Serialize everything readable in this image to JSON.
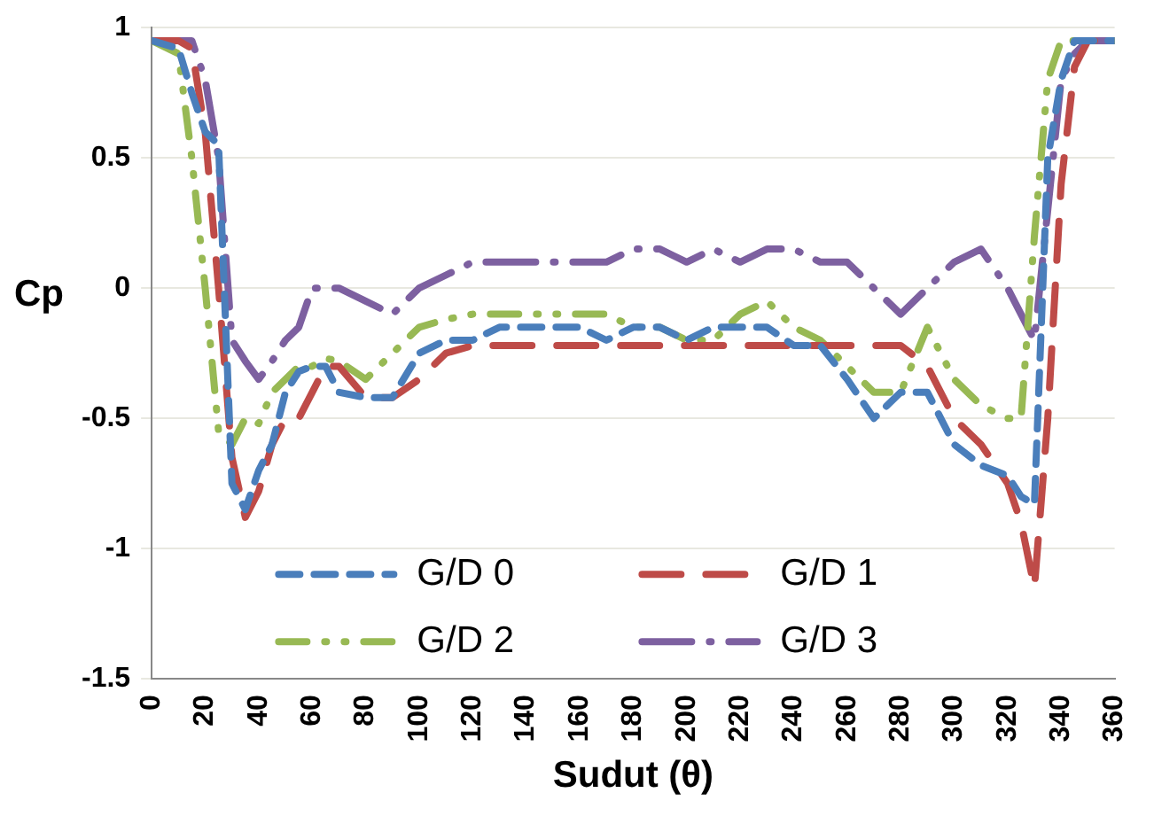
{
  "chart_data": {
    "type": "line",
    "xlabel": "Sudut (θ)",
    "ylabel": "Cp",
    "xlim": [
      0,
      360
    ],
    "xticks": [
      0,
      20,
      40,
      60,
      80,
      100,
      120,
      140,
      160,
      180,
      200,
      220,
      240,
      260,
      280,
      300,
      320,
      340,
      360
    ],
    "ylim": [
      -1.5,
      1
    ],
    "yticks": [
      -1.5,
      -1,
      -0.5,
      0,
      0.5,
      1
    ],
    "grid": "y",
    "legend": "bottom",
    "marker": "none",
    "line_style": "dashed",
    "x": [
      0,
      10,
      15,
      20,
      25,
      30,
      35,
      40,
      45,
      50,
      55,
      60,
      65,
      70,
      80,
      90,
      100,
      110,
      120,
      130,
      140,
      150,
      160,
      170,
      180,
      190,
      200,
      210,
      220,
      230,
      240,
      250,
      260,
      270,
      280,
      290,
      300,
      310,
      320,
      325,
      330,
      335,
      340,
      345,
      350,
      360
    ],
    "series": [
      {
        "name": "G/D 0",
        "color": "#4a7ebb",
        "values": [
          0.95,
          0.92,
          0.75,
          0.6,
          0.55,
          -0.75,
          -0.85,
          -0.7,
          -0.6,
          -0.4,
          -0.32,
          -0.3,
          -0.3,
          -0.4,
          -0.42,
          -0.42,
          -0.25,
          -0.2,
          -0.2,
          -0.15,
          -0.15,
          -0.15,
          -0.15,
          -0.2,
          -0.15,
          -0.15,
          -0.2,
          -0.15,
          -0.15,
          -0.15,
          -0.22,
          -0.22,
          -0.35,
          -0.5,
          -0.4,
          -0.4,
          -0.6,
          -0.68,
          -0.72,
          -0.8,
          -0.83,
          0.5,
          0.8,
          0.95,
          0.95,
          0.95
        ]
      },
      {
        "name": "G/D 1",
        "color": "#be4b48",
        "values": [
          0.95,
          0.95,
          0.92,
          0.6,
          0.0,
          -0.65,
          -0.88,
          -0.78,
          -0.6,
          -0.5,
          -0.5,
          -0.4,
          -0.3,
          -0.3,
          -0.42,
          -0.42,
          -0.35,
          -0.25,
          -0.22,
          -0.22,
          -0.22,
          -0.22,
          -0.22,
          -0.22,
          -0.22,
          -0.22,
          -0.22,
          -0.22,
          -0.22,
          -0.22,
          -0.22,
          -0.22,
          -0.22,
          -0.22,
          -0.22,
          -0.3,
          -0.5,
          -0.6,
          -0.75,
          -0.9,
          -1.15,
          -0.5,
          0.4,
          0.85,
          0.95,
          0.95
        ]
      },
      {
        "name": "G/D 2",
        "color": "#98b954",
        "values": [
          0.95,
          0.9,
          0.5,
          0.0,
          -0.55,
          -0.6,
          -0.5,
          -0.52,
          -0.4,
          -0.35,
          -0.3,
          -0.3,
          -0.27,
          -0.28,
          -0.35,
          -0.25,
          -0.15,
          -0.12,
          -0.1,
          -0.1,
          -0.1,
          -0.1,
          -0.1,
          -0.1,
          -0.15,
          -0.15,
          -0.2,
          -0.2,
          -0.1,
          -0.05,
          -0.15,
          -0.2,
          -0.3,
          -0.4,
          -0.4,
          -0.15,
          -0.35,
          -0.45,
          -0.5,
          -0.5,
          0.2,
          0.8,
          0.95,
          0.95,
          0.95,
          0.95
        ]
      },
      {
        "name": "G/D 3",
        "color": "#7d60a0",
        "values": [
          0.95,
          0.95,
          0.95,
          0.8,
          0.5,
          -0.2,
          -0.28,
          -0.35,
          -0.28,
          -0.2,
          -0.15,
          0.0,
          0.0,
          0.0,
          -0.05,
          -0.1,
          0.0,
          0.05,
          0.1,
          0.1,
          0.1,
          0.1,
          0.1,
          0.1,
          0.15,
          0.15,
          0.1,
          0.15,
          0.1,
          0.15,
          0.15,
          0.1,
          0.1,
          0.0,
          -0.1,
          0.0,
          0.1,
          0.15,
          0.0,
          -0.1,
          -0.2,
          0.3,
          0.8,
          0.9,
          0.95,
          0.95
        ]
      }
    ]
  }
}
